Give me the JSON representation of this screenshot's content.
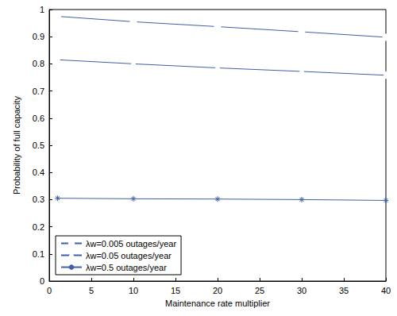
{
  "chart_data": {
    "type": "line",
    "x_label": "Maintenance rate multiplier",
    "y_label": "Probability of full capacity",
    "xlim": [
      0,
      40
    ],
    "xticks": [
      0,
      5,
      10,
      15,
      20,
      25,
      30,
      35,
      40
    ],
    "ylim": [
      0,
      1
    ],
    "yticks": [
      0,
      0.1,
      0.2,
      0.3,
      0.4,
      0.5,
      0.6,
      0.7,
      0.8,
      0.9,
      1
    ],
    "grid": false,
    "legend": "lower left",
    "x": [
      1,
      10,
      20,
      30,
      40
    ],
    "series": [
      {
        "name": "λw=0.005 outages/year",
        "color": "#3f5fa8",
        "marker": "circle",
        "values": [
          0.975,
          0.955,
          0.937,
          0.918,
          0.898
        ]
      },
      {
        "name": "λw=0.05 outages/year",
        "color": "#3f5fa8",
        "marker": "triangle",
        "values": [
          0.815,
          0.8,
          0.785,
          0.772,
          0.758
        ]
      },
      {
        "name": "λw=0.5 outages/year",
        "color": "#3f5fa8",
        "marker": "star",
        "values": [
          0.305,
          0.303,
          0.302,
          0.3,
          0.297
        ]
      }
    ]
  }
}
